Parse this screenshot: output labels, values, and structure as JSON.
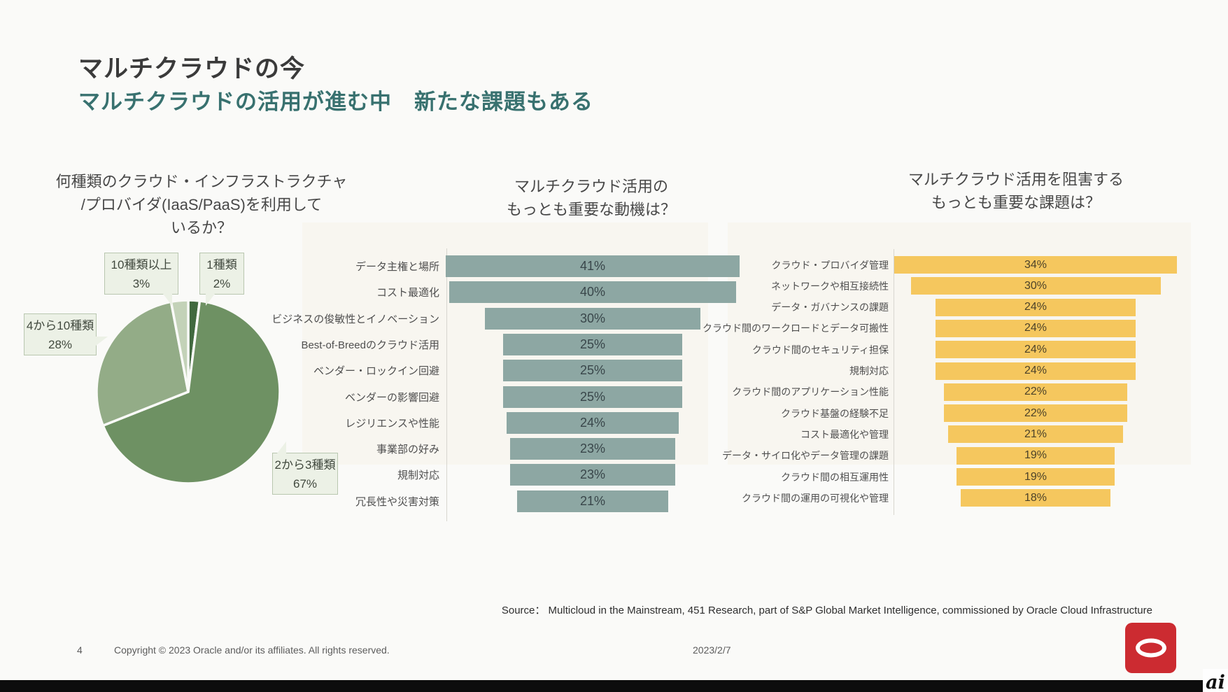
{
  "slide": {
    "title": "マルチクラウドの今",
    "subtitle": "マルチクラウドの活用が進む中　新たな課題もある",
    "source": "Source： Multicloud in the Mainstream, 451 Research, part of S&P Global Market Intelligence, commissioned by Oracle Cloud Infrastructure",
    "footer": {
      "page_number": "4",
      "copyright": "Copyright © 2023 Oracle and/or its affiliates. All rights reserved.",
      "date": "2023/2/7"
    },
    "watermark": "ai"
  },
  "colors": {
    "background": "#fafaf8",
    "title_text": "#3a3a3a",
    "subtitle_teal": "#38716f",
    "chart_title_text": "#484848",
    "motives_bar": "#8da7a3",
    "challenges_bar": "#f5c75e",
    "pie_dark_green": "#41693f",
    "pie_green": "#6e9163",
    "pie_sage": "#93ac87",
    "pie_pale_green": "#c3d2b8",
    "callout_bg": "#ecf1e6",
    "callout_border": "#b9c7b0",
    "oracle_red": "#cc2b31"
  },
  "chart_data": [
    {
      "type": "pie",
      "title": "何種類のクラウド・インフラストラクチャ/プロバイダ(IaaS/PaaS)を利用しているか？",
      "title_lines": [
        "何種類のクラウド・インフラストラクチャ",
        "/プロバイダ(IaaS/PaaS)を利用して",
        "いるか？"
      ],
      "value_suffix": "%",
      "start_angle_deg": 0,
      "direction": "clockwise",
      "segments": [
        {
          "label": "1種類",
          "value": 2,
          "pct": "2%",
          "color": "#41693f"
        },
        {
          "label": "2から3種類",
          "value": 67,
          "pct": "67%",
          "color": "#6e9163"
        },
        {
          "label": "4から10種類",
          "value": 28,
          "pct": "28%",
          "color": "#93ac87"
        },
        {
          "label": "10種類以上",
          "value": 3,
          "pct": "3%",
          "color": "#c3d2b8"
        }
      ]
    },
    {
      "type": "bar",
      "title": "マルチクラウド活用のもっとも重要な動機は？",
      "title_lines": [
        "マルチクラウド活用の",
        "もっとも重要な動機は？"
      ],
      "orientation": "horizontal-centered-funnel",
      "value_suffix": "%",
      "bar_color": "#8da7a3",
      "value_text_color": "#39464a",
      "categories": [
        "データ主権と場所",
        "コスト最適化",
        "ビジネスの俊敏性とイノベーション",
        "Best-of-Breedのクラウド活用",
        "ベンダー・ロックイン回避",
        "ベンダーの影響回避",
        "レジリエンスや性能",
        "事業部の好み",
        "規制対応",
        "冗長性や災害対策"
      ],
      "values": [
        41,
        40,
        30,
        25,
        25,
        25,
        24,
        23,
        23,
        21
      ]
    },
    {
      "type": "bar",
      "title": "マルチクラウド活用を阻害するもっとも重要な課題は？",
      "title_lines": [
        "マルチクラウド活用を阻害する",
        "もっとも重要な課題は？"
      ],
      "orientation": "horizontal-centered-funnel",
      "value_suffix": "%",
      "bar_color": "#f5c75e",
      "value_text_color": "#4c4229",
      "categories": [
        "クラウド・プロバイダ管理",
        "ネットワークや相互接続性",
        "データ・ガバナンスの課題",
        "クラウド間のワークロードとデータ可搬性",
        "クラウド間のセキュリティ担保",
        "規制対応",
        "クラウド間のアプリケーション性能",
        "クラウド基盤の経験不足",
        "コスト最適化や管理",
        "データ・サイロ化やデータ管理の課題",
        "クラウド間の相互運用性",
        "クラウド間の運用の可視化や管理"
      ],
      "values": [
        34,
        30,
        24,
        24,
        24,
        24,
        22,
        22,
        21,
        19,
        19,
        18
      ]
    }
  ]
}
